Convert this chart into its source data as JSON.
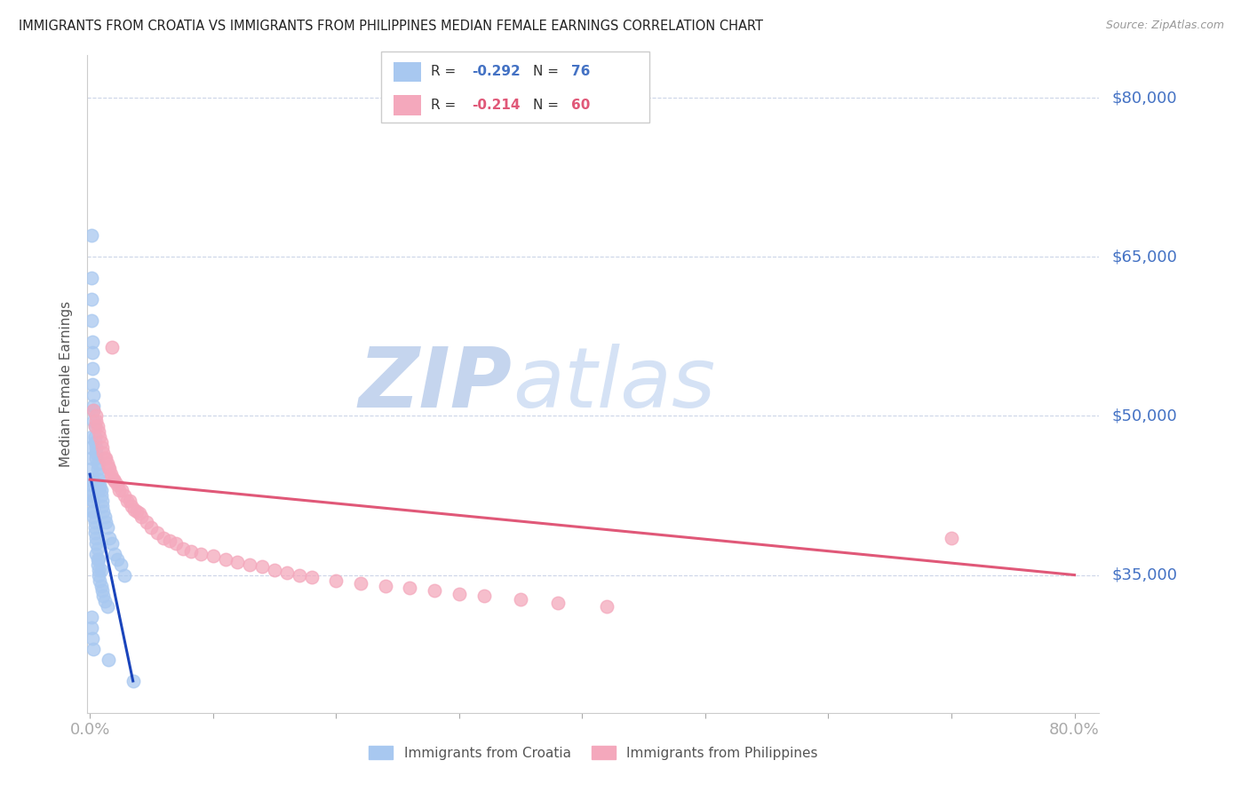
{
  "title": "IMMIGRANTS FROM CROATIA VS IMMIGRANTS FROM PHILIPPINES MEDIAN FEMALE EARNINGS CORRELATION CHART",
  "source": "Source: ZipAtlas.com",
  "ylabel": "Median Female Earnings",
  "ytick_labels": [
    "$80,000",
    "$65,000",
    "$50,000",
    "$35,000"
  ],
  "ytick_values": [
    80000,
    65000,
    50000,
    35000
  ],
  "ymin": 22000,
  "ymax": 84000,
  "xmin": -0.002,
  "xmax": 0.82,
  "legend_r_croatia": "-0.292",
  "legend_n_croatia": "76",
  "legend_r_philippines": "-0.214",
  "legend_n_philippines": "60",
  "color_croatia": "#a8c8f0",
  "color_philippines": "#f4a8bc",
  "color_line_croatia": "#1a44bb",
  "color_line_philippines": "#e05878",
  "color_axis_labels": "#4472c4",
  "watermark_zip": "ZIP",
  "watermark_atlas": "atlas",
  "watermark_color": "#d0dff5",
  "croatia_x": [
    0.001,
    0.001,
    0.001,
    0.0015,
    0.002,
    0.002,
    0.002,
    0.002,
    0.003,
    0.003,
    0.003,
    0.003,
    0.004,
    0.004,
    0.004,
    0.005,
    0.005,
    0.005,
    0.006,
    0.006,
    0.007,
    0.007,
    0.008,
    0.008,
    0.009,
    0.009,
    0.01,
    0.01,
    0.011,
    0.012,
    0.013,
    0.014,
    0.016,
    0.018,
    0.02,
    0.022,
    0.025,
    0.028,
    0.001,
    0.001,
    0.001,
    0.0015,
    0.002,
    0.002,
    0.003,
    0.003,
    0.004,
    0.004,
    0.005,
    0.005,
    0.006,
    0.006,
    0.007,
    0.007,
    0.008,
    0.009,
    0.01,
    0.011,
    0.012,
    0.014,
    0.001,
    0.001,
    0.002,
    0.002,
    0.003,
    0.004,
    0.005,
    0.006,
    0.007,
    0.009,
    0.001,
    0.001,
    0.002,
    0.003,
    0.015,
    0.035
  ],
  "croatia_y": [
    67000,
    63000,
    61000,
    59000,
    57000,
    56000,
    54500,
    53000,
    52000,
    51000,
    50500,
    49500,
    49000,
    48000,
    47500,
    47000,
    46500,
    46000,
    45500,
    45000,
    44500,
    44000,
    43500,
    43200,
    43000,
    42500,
    42000,
    41500,
    41000,
    40500,
    40000,
    39500,
    38500,
    38000,
    37000,
    36500,
    36000,
    35000,
    48000,
    47000,
    46000,
    45000,
    44000,
    43000,
    42000,
    41000,
    40000,
    39000,
    38000,
    37000,
    36500,
    36000,
    35500,
    35000,
    34500,
    34000,
    33500,
    33000,
    32500,
    32000,
    43500,
    42500,
    42000,
    41000,
    40500,
    39500,
    38500,
    37500,
    36500,
    35500,
    31000,
    30000,
    29000,
    28000,
    27000,
    25000
  ],
  "philippines_x": [
    0.003,
    0.004,
    0.005,
    0.005,
    0.006,
    0.007,
    0.008,
    0.009,
    0.01,
    0.011,
    0.012,
    0.013,
    0.014,
    0.015,
    0.016,
    0.017,
    0.018,
    0.019,
    0.02,
    0.022,
    0.024,
    0.026,
    0.028,
    0.03,
    0.032,
    0.034,
    0.036,
    0.038,
    0.04,
    0.042,
    0.046,
    0.05,
    0.055,
    0.06,
    0.065,
    0.07,
    0.076,
    0.082,
    0.09,
    0.1,
    0.11,
    0.12,
    0.13,
    0.14,
    0.15,
    0.16,
    0.17,
    0.18,
    0.2,
    0.22,
    0.24,
    0.26,
    0.28,
    0.3,
    0.32,
    0.35,
    0.38,
    0.42,
    0.7,
    0.018
  ],
  "philippines_y": [
    50500,
    49000,
    50000,
    49500,
    49000,
    48500,
    48000,
    47500,
    47000,
    46500,
    46000,
    46000,
    45500,
    45200,
    45000,
    44500,
    44200,
    44000,
    43800,
    43500,
    43000,
    43000,
    42500,
    42000,
    42000,
    41500,
    41200,
    41000,
    40800,
    40500,
    40000,
    39500,
    39000,
    38500,
    38200,
    38000,
    37500,
    37200,
    37000,
    36800,
    36500,
    36200,
    36000,
    35800,
    35500,
    35200,
    35000,
    34800,
    34500,
    34200,
    34000,
    33800,
    33500,
    33200,
    33000,
    32700,
    32400,
    32000,
    38500,
    56500
  ],
  "cr_line_x": [
    0.0,
    0.035
  ],
  "cr_line_y": [
    44500,
    25000
  ],
  "ph_line_x": [
    0.0,
    0.8
  ],
  "ph_line_y": [
    44000,
    35000
  ]
}
